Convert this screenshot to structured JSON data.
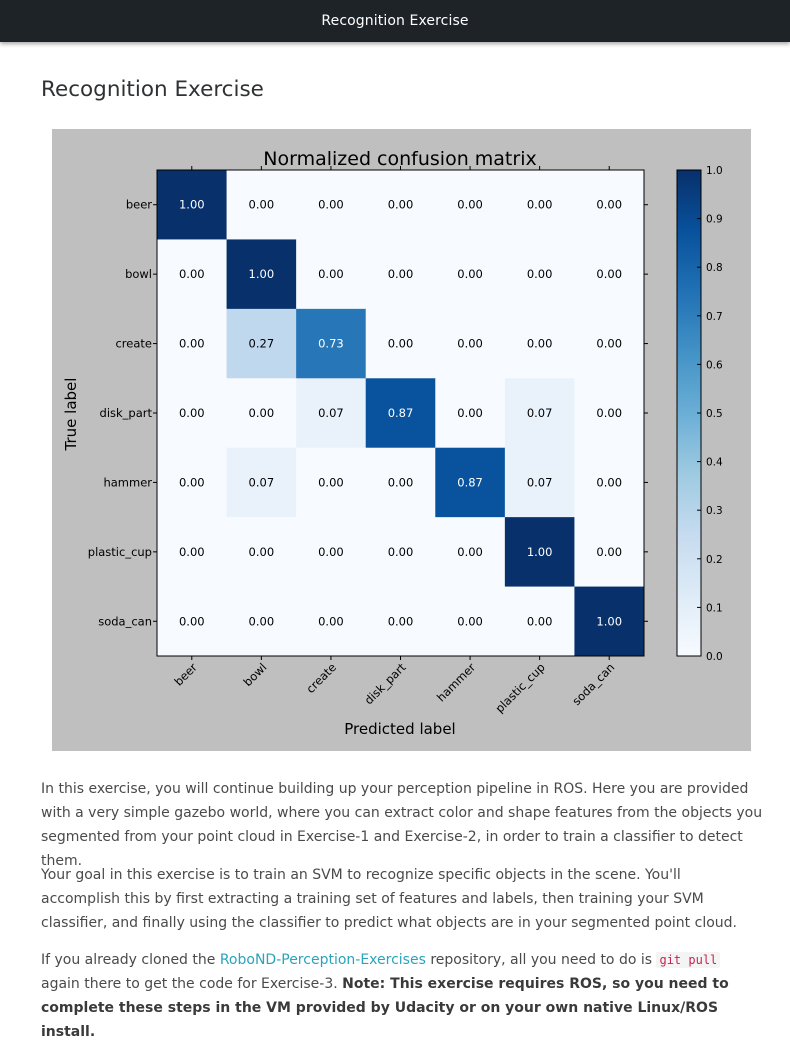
{
  "header": {
    "title": "Recognition Exercise"
  },
  "page": {
    "heading": "Recognition Exercise"
  },
  "chart_data": {
    "type": "heatmap",
    "title": "Normalized confusion matrix",
    "xlabel": "Predicted label",
    "ylabel": "True label",
    "row_labels": [
      "beer",
      "bowl",
      "create",
      "disk_part",
      "hammer",
      "plastic_cup",
      "soda_can"
    ],
    "col_labels": [
      "beer",
      "bowl",
      "create",
      "disk_part",
      "hammer",
      "plastic_cup",
      "soda_can"
    ],
    "values": [
      [
        1.0,
        0.0,
        0.0,
        0.0,
        0.0,
        0.0,
        0.0
      ],
      [
        0.0,
        1.0,
        0.0,
        0.0,
        0.0,
        0.0,
        0.0
      ],
      [
        0.0,
        0.27,
        0.73,
        0.0,
        0.0,
        0.0,
        0.0
      ],
      [
        0.0,
        0.0,
        0.07,
        0.87,
        0.0,
        0.07,
        0.0
      ],
      [
        0.0,
        0.07,
        0.0,
        0.0,
        0.87,
        0.07,
        0.0
      ],
      [
        0.0,
        0.0,
        0.0,
        0.0,
        0.0,
        1.0,
        0.0
      ],
      [
        0.0,
        0.0,
        0.0,
        0.0,
        0.0,
        0.0,
        1.0
      ]
    ],
    "colorbar": {
      "range": [
        0.0,
        1.0
      ],
      "ticks": [
        "0.0",
        "0.1",
        "0.2",
        "0.3",
        "0.4",
        "0.5",
        "0.6",
        "0.7",
        "0.8",
        "0.9",
        "1.0"
      ]
    },
    "colormap": "Blues"
  },
  "body": {
    "p1": "In this exercise, you will continue building up your perception pipeline in ROS. Here you are provided with a very simple gazebo world, where you can extract color and shape features from the objects you segmented from your point cloud in Exercise-1 and Exercise-2, in order to train a classifier to detect them.",
    "p2": "Your goal in this exercise is to train an SVM to recognize specific objects in the scene. You'll accomplish this by first extracting a training set of features and labels, then training your SVM classifier, and finally using the classifier to predict what objects are in your segmented point cloud.",
    "p3_pre": "If you already cloned the ",
    "p3_link": "RoboND-Perception-Exercises",
    "p3_mid": " repository, all you need to do is ",
    "p3_code": "git pull",
    "p3_post": " again there to get the code for Exercise-3. ",
    "p3_bold": "Note: This exercise requires ROS, so you need to complete these steps in the VM provided by Udacity or on your own native Linux/ROS install."
  },
  "colors": {
    "topbar": "#1e2328",
    "link": "#2aa3bd",
    "code": "#c7254e"
  }
}
